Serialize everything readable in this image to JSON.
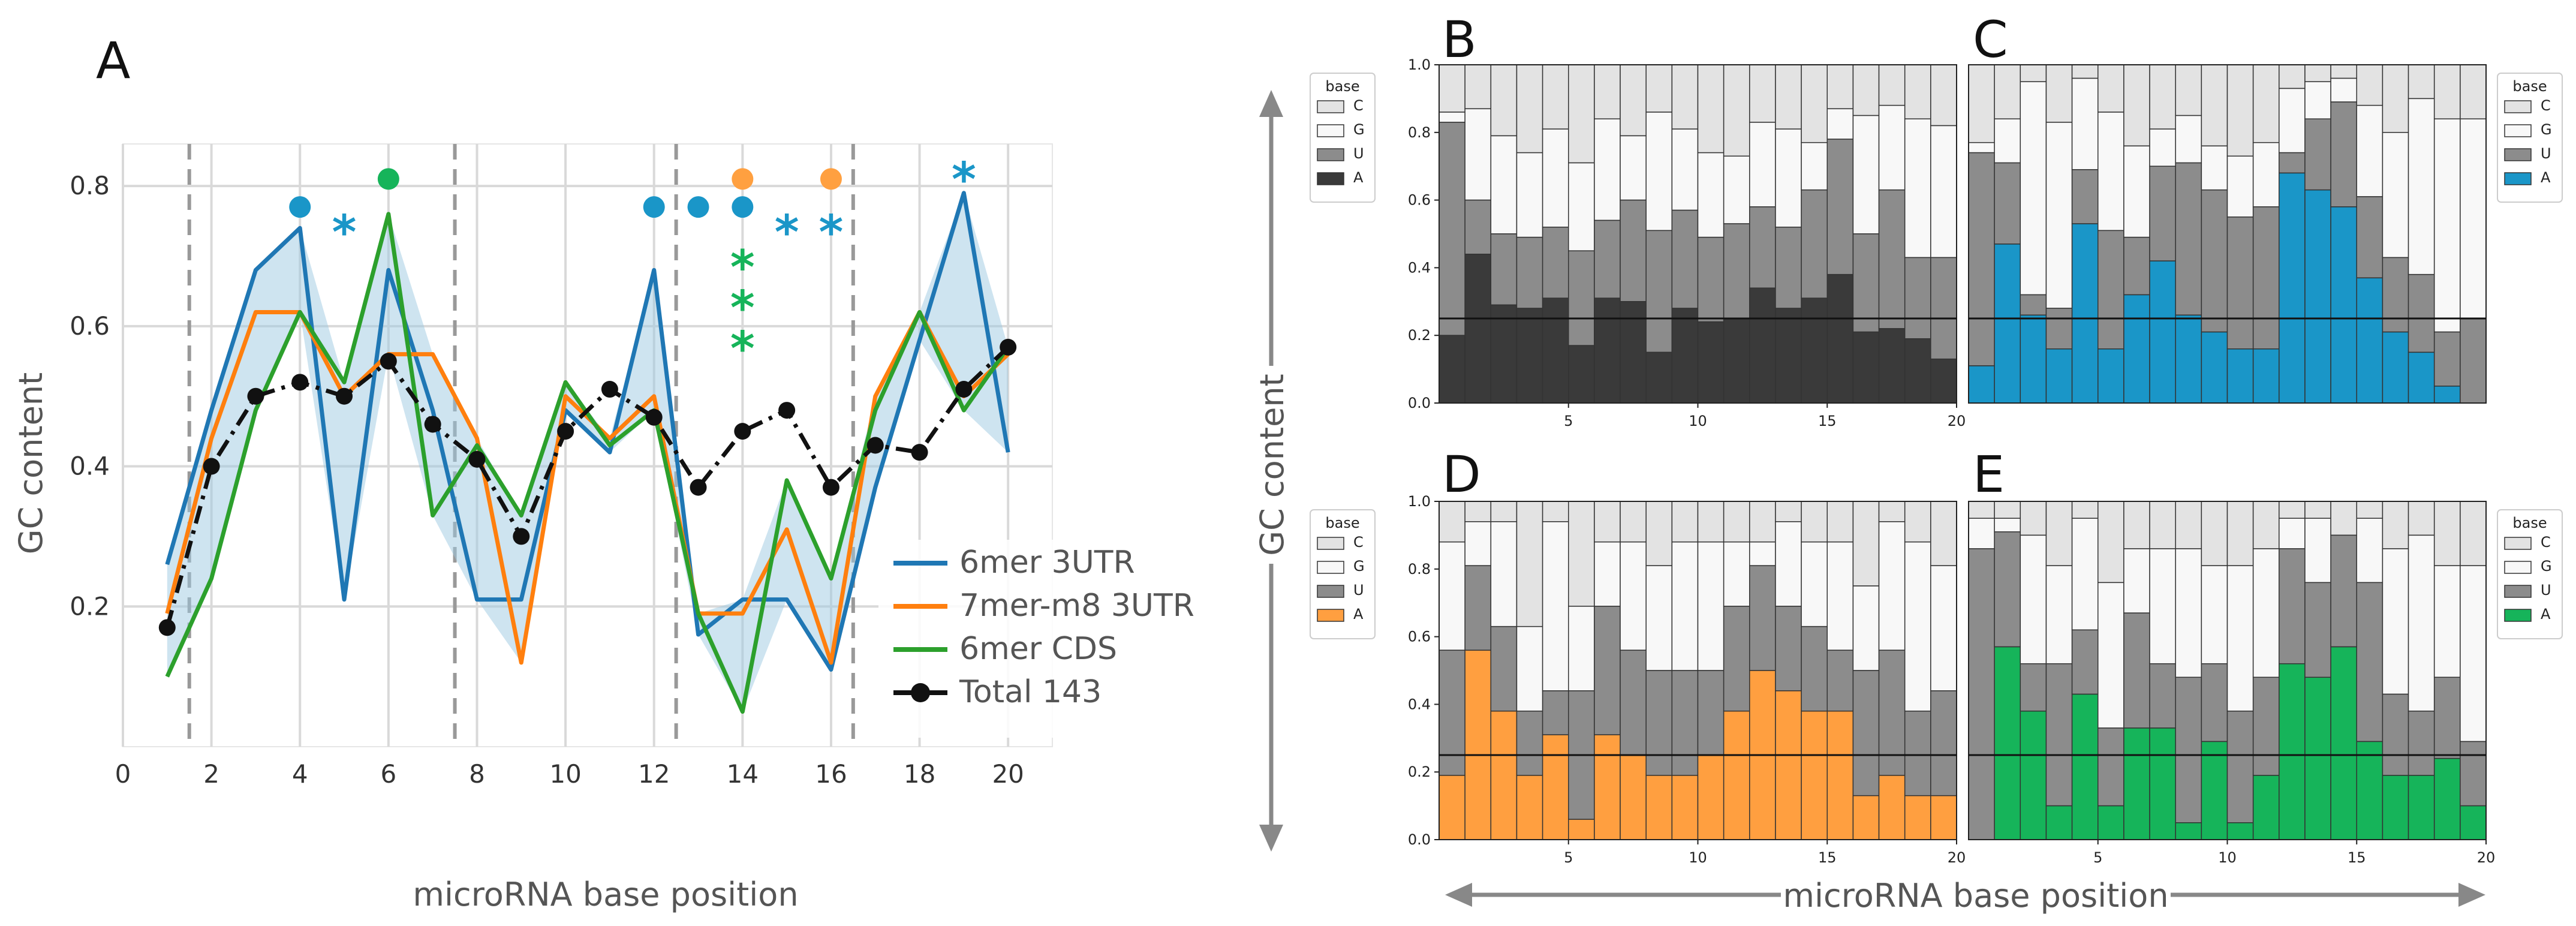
{
  "colors": {
    "C": "#e3e3e3",
    "G": "#f8f8f8",
    "U": "#8c8c8c",
    "A_B": "#3a3a3a",
    "A_C": "#1a96c8",
    "A_D": "#ff9f40",
    "A_E": "#16b45a",
    "blue": "#1f77b4",
    "orange": "#ff7f0e",
    "green": "#2ca02c",
    "black": "#111111",
    "band": "#9ecae1",
    "grid": "#d9d9d9",
    "dash": "#999999",
    "arrow": "#888888"
  },
  "chart_data": [
    {
      "panel": "A",
      "type": "line",
      "xlabel": "microRNA base position",
      "ylabel": "GC content",
      "xlim": [
        0,
        21
      ],
      "ylim": [
        0,
        0.86
      ],
      "xticks": [
        "0",
        "2",
        "4",
        "6",
        "8",
        "10",
        "12",
        "14",
        "16",
        "18",
        "20"
      ],
      "yticks": [
        "0.2",
        "0.4",
        "0.6",
        "0.8"
      ],
      "x": [
        1,
        2,
        3,
        4,
        5,
        6,
        7,
        8,
        9,
        10,
        11,
        12,
        13,
        14,
        15,
        16,
        17,
        18,
        19,
        20
      ],
      "series": [
        {
          "name": "6mer 3UTR",
          "color_key": "blue",
          "values": [
            0.26,
            0.48,
            0.68,
            0.74,
            0.21,
            0.68,
            0.48,
            0.21,
            0.21,
            0.48,
            0.42,
            0.68,
            0.16,
            0.21,
            0.21,
            0.11,
            0.37,
            0.58,
            0.79,
            0.42
          ]
        },
        {
          "name": "7mer-m8 3UTR",
          "color_key": "orange",
          "values": [
            0.19,
            0.44,
            0.62,
            0.62,
            0.5,
            0.56,
            0.56,
            0.44,
            0.12,
            0.5,
            0.44,
            0.5,
            0.19,
            0.19,
            0.31,
            0.12,
            0.5,
            0.62,
            0.5,
            0.56
          ]
        },
        {
          "name": "6mer CDS",
          "color_key": "green",
          "values": [
            0.1,
            0.24,
            0.48,
            0.62,
            0.52,
            0.76,
            0.33,
            0.43,
            0.33,
            0.52,
            0.43,
            0.48,
            0.19,
            0.05,
            0.38,
            0.24,
            0.48,
            0.62,
            0.48,
            0.57
          ]
        },
        {
          "name": "Total 143",
          "color_key": "black",
          "values": [
            0.17,
            0.4,
            0.5,
            0.52,
            0.5,
            0.55,
            0.46,
            0.41,
            0.3,
            0.45,
            0.51,
            0.47,
            0.37,
            0.45,
            0.48,
            0.37,
            0.43,
            0.42,
            0.51,
            0.57
          ]
        }
      ],
      "vlines": [
        1.5,
        7.5,
        12.5,
        16.5
      ],
      "markers": {
        "blue_dots": [
          4,
          12,
          13,
          14
        ],
        "blue_stars": [
          5,
          15,
          16,
          19
        ],
        "orange_dots": [
          14,
          16
        ],
        "green_dots": [
          6
        ],
        "green_stars_x14_count": 3
      }
    },
    {
      "panel": "B",
      "type": "bar",
      "stacked": true,
      "legend_title": "base",
      "legend_labels": [
        "C",
        "G",
        "U",
        "A"
      ],
      "legend_side": "left",
      "x": [
        1,
        2,
        3,
        4,
        5,
        6,
        7,
        8,
        9,
        10,
        11,
        12,
        13,
        14,
        15,
        16,
        17,
        18,
        19,
        20
      ],
      "xticks": [
        "5",
        "10",
        "15",
        "20"
      ],
      "yticks": [
        "0.0",
        "0.2",
        "0.4",
        "0.6",
        "0.8",
        "1.0"
      ],
      "hline": 0.25,
      "a_color_key": "A_B",
      "A": [
        0.2,
        0.44,
        0.29,
        0.28,
        0.31,
        0.17,
        0.31,
        0.3,
        0.15,
        0.28,
        0.24,
        0.25,
        0.34,
        0.28,
        0.31,
        0.38,
        0.21,
        0.22,
        0.19,
        0.13
      ],
      "AU": [
        0.83,
        0.6,
        0.5,
        0.49,
        0.52,
        0.45,
        0.54,
        0.6,
        0.51,
        0.57,
        0.49,
        0.53,
        0.58,
        0.52,
        0.63,
        0.78,
        0.5,
        0.63,
        0.43,
        0.43
      ],
      "AUG": [
        0.86,
        0.87,
        0.79,
        0.74,
        0.81,
        0.71,
        0.84,
        0.79,
        0.86,
        0.81,
        0.74,
        0.73,
        0.83,
        0.81,
        0.77,
        0.87,
        0.85,
        0.88,
        0.84,
        0.82
      ]
    },
    {
      "panel": "C",
      "type": "bar",
      "stacked": true,
      "legend_title": "base",
      "legend_labels": [
        "C",
        "G",
        "U",
        "A"
      ],
      "legend_side": "right",
      "x": [
        1,
        2,
        3,
        4,
        5,
        6,
        7,
        8,
        9,
        10,
        11,
        12,
        13,
        14,
        15,
        16,
        17,
        18,
        19,
        20
      ],
      "xticks": [],
      "yticks": [],
      "hline": 0.25,
      "a_color_key": "A_C",
      "A": [
        0.11,
        0.47,
        0.26,
        0.16,
        0.53,
        0.16,
        0.32,
        0.42,
        0.26,
        0.21,
        0.16,
        0.16,
        0.68,
        0.63,
        0.58,
        0.37,
        0.21,
        0.15,
        0.05,
        0.0
      ],
      "AU": [
        0.74,
        0.71,
        0.32,
        0.28,
        0.69,
        0.51,
        0.49,
        0.7,
        0.71,
        0.63,
        0.55,
        0.58,
        0.74,
        0.84,
        0.89,
        0.61,
        0.43,
        0.38,
        0.21,
        0.25
      ],
      "AUG": [
        0.77,
        0.84,
        0.95,
        0.83,
        0.96,
        0.86,
        0.76,
        0.81,
        0.85,
        0.76,
        0.73,
        0.77,
        0.93,
        0.95,
        0.96,
        0.88,
        0.8,
        0.9,
        0.84,
        0.84
      ]
    },
    {
      "panel": "D",
      "type": "bar",
      "stacked": true,
      "legend_title": "base",
      "legend_labels": [
        "C",
        "G",
        "U",
        "A"
      ],
      "legend_side": "left",
      "x": [
        1,
        2,
        3,
        4,
        5,
        6,
        7,
        8,
        9,
        10,
        11,
        12,
        13,
        14,
        15,
        16,
        17,
        18,
        19,
        20
      ],
      "xticks": [
        "5",
        "10",
        "15",
        "20"
      ],
      "yticks": [
        "0.0",
        "0.2",
        "0.4",
        "0.6",
        "0.8",
        "1.0"
      ],
      "hline": 0.25,
      "a_color_key": "A_D",
      "A": [
        0.19,
        0.56,
        0.38,
        0.19,
        0.31,
        0.06,
        0.31,
        0.25,
        0.19,
        0.19,
        0.25,
        0.38,
        0.5,
        0.44,
        0.38,
        0.38,
        0.13,
        0.19,
        0.13,
        0.13
      ],
      "AU": [
        0.56,
        0.81,
        0.63,
        0.38,
        0.44,
        0.44,
        0.69,
        0.56,
        0.5,
        0.5,
        0.5,
        0.69,
        0.81,
        0.69,
        0.63,
        0.56,
        0.5,
        0.56,
        0.38,
        0.44
      ],
      "AUG": [
        0.88,
        0.94,
        0.94,
        0.63,
        0.94,
        0.69,
        0.88,
        0.88,
        0.81,
        0.88,
        0.88,
        0.88,
        0.88,
        0.94,
        0.88,
        0.88,
        0.75,
        0.94,
        0.88,
        0.81
      ]
    },
    {
      "panel": "E",
      "type": "bar",
      "stacked": true,
      "legend_title": "base",
      "legend_labels": [
        "C",
        "G",
        "U",
        "A"
      ],
      "legend_side": "right",
      "x": [
        1,
        2,
        3,
        4,
        5,
        6,
        7,
        8,
        9,
        10,
        11,
        12,
        13,
        14,
        15,
        16,
        17,
        18,
        19,
        20
      ],
      "xticks": [
        "5",
        "10",
        "15",
        "20"
      ],
      "yticks": [],
      "hline": 0.25,
      "a_color_key": "A_E",
      "A": [
        0.0,
        0.57,
        0.38,
        0.1,
        0.43,
        0.1,
        0.33,
        0.33,
        0.05,
        0.29,
        0.05,
        0.19,
        0.52,
        0.48,
        0.57,
        0.29,
        0.19,
        0.19,
        0.24,
        0.1
      ],
      "AU": [
        0.86,
        0.91,
        0.52,
        0.52,
        0.62,
        0.33,
        0.67,
        0.52,
        0.48,
        0.52,
        0.38,
        0.48,
        0.86,
        0.76,
        0.9,
        0.76,
        0.43,
        0.38,
        0.48,
        0.29
      ],
      "AUG": [
        0.95,
        0.95,
        0.9,
        0.81,
        0.95,
        0.76,
        0.86,
        0.86,
        0.86,
        0.81,
        0.81,
        0.86,
        0.95,
        0.95,
        0.9,
        0.95,
        0.86,
        0.9,
        0.81,
        0.81
      ]
    }
  ],
  "labels": {
    "panel_A": "A",
    "panel_B": "B",
    "panel_C": "C",
    "panel_D": "D",
    "panel_E": "E",
    "A_xlabel": "microRNA base position",
    "A_ylabel": "GC content",
    "right_ylabel": "GC content",
    "right_xlabel": "microRNA base position",
    "legend": [
      "6mer 3UTR",
      "7mer-m8 3UTR",
      "6mer CDS",
      "Total 143"
    ],
    "base_title": "base",
    "base_labels": [
      "C",
      "G",
      "U",
      "A"
    ],
    "star": "*"
  }
}
